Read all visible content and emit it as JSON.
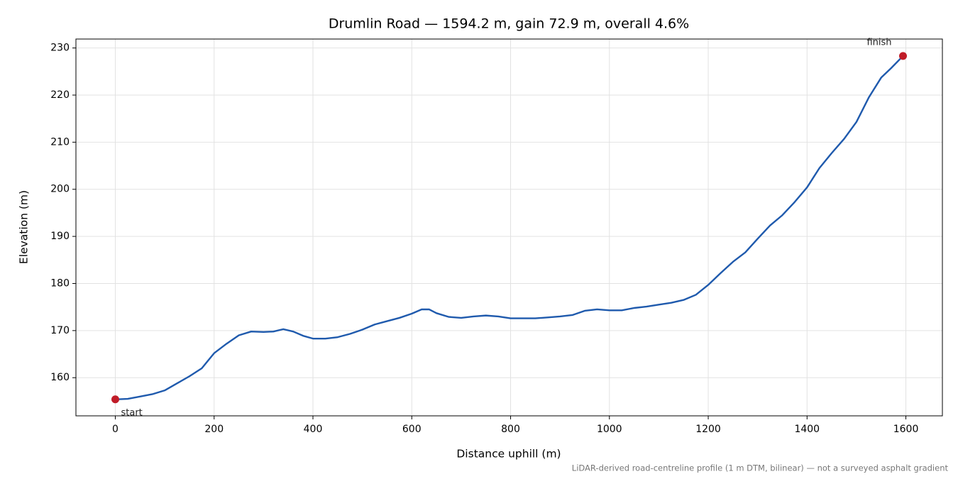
{
  "chart_data": {
    "type": "line",
    "title": "Drumlin Road — 1594.2 m, gain 72.9 m, overall 4.6%",
    "xlabel": "Distance uphill (m)",
    "ylabel": "Elevation (m)",
    "note": "LiDAR-derived road-centreline profile (1 m DTM, bilinear) — not a surveyed asphalt gradient",
    "annotations": [
      "start",
      "finish"
    ],
    "x": [
      0,
      25,
      50,
      75,
      100,
      125,
      150,
      175,
      200,
      225,
      250,
      275,
      300,
      320,
      340,
      360,
      380,
      400,
      425,
      450,
      475,
      500,
      525,
      550,
      575,
      600,
      620,
      635,
      650,
      675,
      700,
      725,
      750,
      775,
      800,
      825,
      850,
      875,
      900,
      925,
      950,
      975,
      1000,
      1025,
      1050,
      1075,
      1100,
      1125,
      1150,
      1175,
      1200,
      1225,
      1250,
      1275,
      1300,
      1325,
      1350,
      1375,
      1400,
      1425,
      1450,
      1475,
      1500,
      1525,
      1550,
      1570,
      1594.2
    ],
    "values": [
      155.4,
      155.5,
      156.0,
      156.5,
      157.3,
      158.8,
      160.3,
      162.0,
      165.2,
      167.2,
      169.0,
      169.8,
      169.7,
      169.8,
      170.3,
      169.8,
      168.9,
      168.3,
      168.3,
      168.6,
      169.3,
      170.2,
      171.3,
      172.0,
      172.7,
      173.6,
      174.5,
      174.5,
      173.7,
      172.9,
      172.7,
      173.0,
      173.2,
      173.0,
      172.6,
      172.6,
      172.6,
      172.8,
      173.0,
      173.3,
      174.2,
      174.5,
      174.3,
      174.3,
      174.8,
      175.1,
      175.5,
      175.9,
      176.5,
      177.6,
      179.7,
      182.2,
      184.6,
      186.6,
      189.5,
      192.3,
      194.5,
      197.3,
      200.4,
      204.5,
      207.7,
      210.7,
      214.3,
      219.5,
      223.7,
      225.7,
      228.3
    ],
    "color": "#1f5aad",
    "marker_color": "#c01c28",
    "xlim": [
      -79.7,
      1673.9
    ],
    "ylim": [
      151.9,
      231.9
    ],
    "xticks": [
      0,
      200,
      400,
      600,
      800,
      1000,
      1200,
      1400,
      1600
    ],
    "yticks": [
      160,
      170,
      180,
      190,
      200,
      210,
      220,
      230
    ],
    "grid": true
  }
}
